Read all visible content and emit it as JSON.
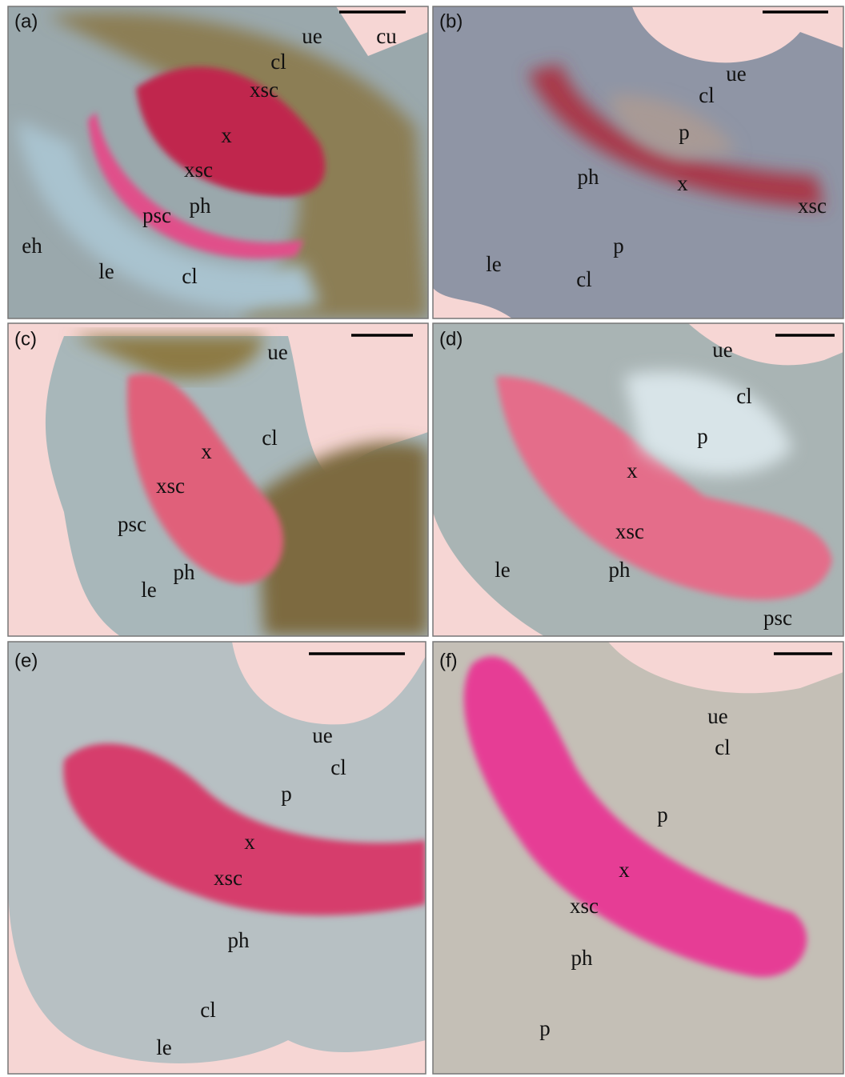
{
  "panels": [
    {
      "id": "(a)",
      "labels": [
        "ue",
        "cu",
        "cl",
        "xsc",
        "x",
        "xsc",
        "ph",
        "psc",
        "eh",
        "le",
        "cl"
      ]
    },
    {
      "id": "(b)",
      "labels": [
        "ue",
        "cl",
        "p",
        "ph",
        "x",
        "xsc",
        "p",
        "le",
        "cl"
      ]
    },
    {
      "id": "(c)",
      "labels": [
        "ue",
        "cl",
        "x",
        "xsc",
        "psc",
        "ph",
        "le"
      ]
    },
    {
      "id": "(d)",
      "labels": [
        "ue",
        "cl",
        "p",
        "x",
        "xsc",
        "le",
        "ph",
        "psc"
      ]
    },
    {
      "id": "(e)",
      "labels": [
        "ue",
        "cl",
        "p",
        "x",
        "xsc",
        "ph",
        "cl",
        "le"
      ]
    },
    {
      "id": "(f)",
      "labels": [
        "ue",
        "cl",
        "p",
        "x",
        "xsc",
        "ph",
        "p"
      ]
    }
  ]
}
